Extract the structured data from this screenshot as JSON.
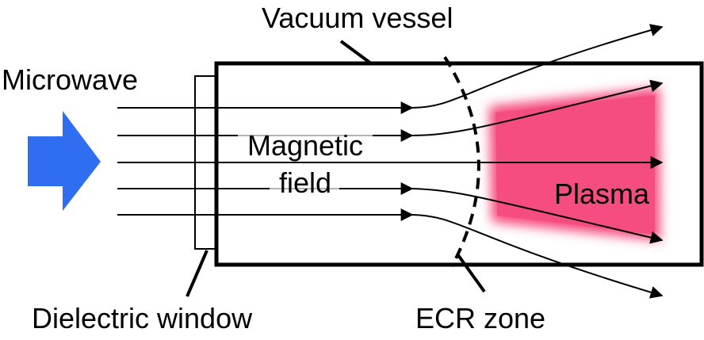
{
  "labels": {
    "vacuum_vessel": "Vacuum vessel",
    "microwave": "Microwave",
    "magnetic_line1": "Magnetic",
    "magnetic_line2": "field",
    "plasma": "Plasma",
    "dielectric_window": "Dielectric window",
    "ecr_zone": "ECR zone"
  },
  "colors": {
    "microwave_arrow": "#2f6ef0",
    "plasma": "#f54d7f",
    "lines": "#000000",
    "background": "#ffffff"
  },
  "icons": {
    "microwave": "block-arrow-right"
  }
}
